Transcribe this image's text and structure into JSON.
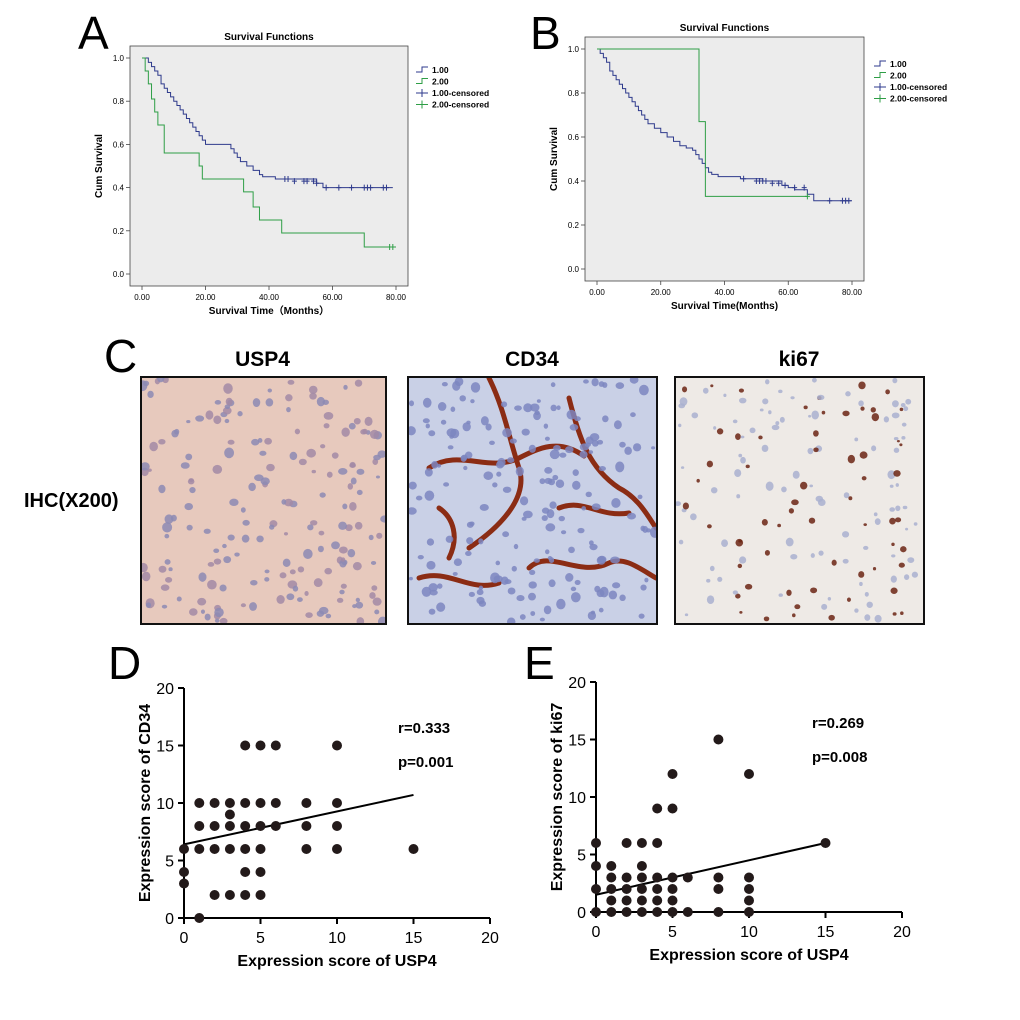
{
  "panels": {
    "A": "A",
    "B": "B",
    "C": "C",
    "D": "D",
    "E": "E"
  },
  "ihc": {
    "side_label": "IHC(X200)",
    "titles": [
      "USP4",
      "CD34",
      "ki67"
    ],
    "tint": [
      "#e7c9bd",
      "#c9d0e6",
      "#eeeae6"
    ]
  },
  "chart_data": [
    {
      "id": "A",
      "type": "line",
      "title": "Survival Functions",
      "xlabel": "Survival Time（Months）",
      "ylabel": "Cum Survival",
      "xlim": [
        0,
        80
      ],
      "ylim": [
        0,
        1
      ],
      "xticks": [
        "0.00",
        "20.00",
        "40.00",
        "60.00",
        "80.00"
      ],
      "yticks": [
        "0.0",
        "0.2",
        "0.4",
        "0.6",
        "0.8",
        "1.0"
      ],
      "legend": [
        "1.00",
        "2.00",
        "1.00-censored",
        "2.00-censored"
      ],
      "series": [
        {
          "name": "1.00",
          "color": "#2e3a8c",
          "steps": [
            [
              0,
              1.0
            ],
            [
              2,
              0.98
            ],
            [
              3,
              0.96
            ],
            [
              4,
              0.94
            ],
            [
              5,
              0.92
            ],
            [
              6,
              0.88
            ],
            [
              7,
              0.86
            ],
            [
              8,
              0.84
            ],
            [
              9,
              0.82
            ],
            [
              10,
              0.8
            ],
            [
              11,
              0.78
            ],
            [
              12,
              0.76
            ],
            [
              13,
              0.74
            ],
            [
              14,
              0.72
            ],
            [
              15,
              0.7
            ],
            [
              16,
              0.68
            ],
            [
              17,
              0.66
            ],
            [
              18,
              0.64
            ],
            [
              19,
              0.62
            ],
            [
              20,
              0.6
            ],
            [
              28,
              0.58
            ],
            [
              29,
              0.56
            ],
            [
              30,
              0.54
            ],
            [
              31,
              0.52
            ],
            [
              33,
              0.5
            ],
            [
              35,
              0.48
            ],
            [
              37,
              0.46
            ],
            [
              38,
              0.45
            ],
            [
              42,
              0.44
            ],
            [
              55,
              0.42
            ],
            [
              57,
              0.4
            ],
            [
              79,
              0.4
            ]
          ],
          "censored": [
            [
              45,
              0.44
            ],
            [
              46,
              0.44
            ],
            [
              48,
              0.43
            ],
            [
              51,
              0.43
            ],
            [
              52,
              0.43
            ],
            [
              54,
              0.43
            ],
            [
              55,
              0.42
            ],
            [
              58,
              0.4
            ],
            [
              62,
              0.4
            ],
            [
              66,
              0.4
            ],
            [
              70,
              0.4
            ],
            [
              71,
              0.4
            ],
            [
              72,
              0.4
            ],
            [
              76,
              0.4
            ],
            [
              77,
              0.4
            ]
          ]
        },
        {
          "name": "2.00",
          "color": "#2e9e46",
          "steps": [
            [
              0,
              1.0
            ],
            [
              1,
              0.94
            ],
            [
              2,
              0.88
            ],
            [
              3,
              0.81
            ],
            [
              4,
              0.75
            ],
            [
              5,
              0.69
            ],
            [
              7,
              0.56
            ],
            [
              18,
              0.5
            ],
            [
              19,
              0.44
            ],
            [
              32,
              0.38
            ],
            [
              35,
              0.31
            ],
            [
              37,
              0.25
            ],
            [
              44,
              0.19
            ],
            [
              70,
              0.125
            ],
            [
              80,
              0.125
            ]
          ],
          "censored": [
            [
              78,
              0.125
            ],
            [
              79,
              0.125
            ]
          ]
        }
      ]
    },
    {
      "id": "B",
      "type": "line",
      "title": "Survival Functions",
      "xlabel": "Survival Time(Months)",
      "ylabel": "Cum Survival",
      "xlim": [
        0,
        80
      ],
      "ylim": [
        0,
        1
      ],
      "xticks": [
        "0.00",
        "20.00",
        "40.00",
        "60.00",
        "80.00"
      ],
      "yticks": [
        "0.0",
        "0.2",
        "0.4",
        "0.6",
        "0.8",
        "1.0"
      ],
      "legend": [
        "1.00",
        "2.00",
        "1.00-censored",
        "2.00-censored"
      ],
      "series": [
        {
          "name": "1.00",
          "color": "#2e3a8c",
          "steps": [
            [
              0,
              1.0
            ],
            [
              1,
              0.98
            ],
            [
              2,
              0.96
            ],
            [
              3,
              0.94
            ],
            [
              4,
              0.9
            ],
            [
              5,
              0.88
            ],
            [
              6,
              0.86
            ],
            [
              7,
              0.84
            ],
            [
              8,
              0.82
            ],
            [
              9,
              0.8
            ],
            [
              10,
              0.78
            ],
            [
              11,
              0.76
            ],
            [
              12,
              0.74
            ],
            [
              13,
              0.72
            ],
            [
              14,
              0.7
            ],
            [
              15,
              0.68
            ],
            [
              16,
              0.66
            ],
            [
              18,
              0.64
            ],
            [
              20,
              0.62
            ],
            [
              22,
              0.6
            ],
            [
              24,
              0.58
            ],
            [
              26,
              0.56
            ],
            [
              28,
              0.55
            ],
            [
              30,
              0.54
            ],
            [
              31,
              0.52
            ],
            [
              32,
              0.5
            ],
            [
              33,
              0.48
            ],
            [
              34,
              0.46
            ],
            [
              35,
              0.44
            ],
            [
              36,
              0.43
            ],
            [
              38,
              0.42
            ],
            [
              45,
              0.41
            ],
            [
              52,
              0.4
            ],
            [
              58,
              0.38
            ],
            [
              60,
              0.37
            ],
            [
              62,
              0.36
            ],
            [
              66,
              0.34
            ],
            [
              68,
              0.31
            ],
            [
              80,
              0.31
            ]
          ],
          "censored": [
            [
              46,
              0.41
            ],
            [
              50,
              0.4
            ],
            [
              51,
              0.4
            ],
            [
              52,
              0.4
            ],
            [
              53,
              0.4
            ],
            [
              55,
              0.39
            ],
            [
              57,
              0.39
            ],
            [
              59,
              0.38
            ],
            [
              62,
              0.37
            ],
            [
              65,
              0.37
            ],
            [
              73,
              0.31
            ],
            [
              77,
              0.31
            ],
            [
              78,
              0.31
            ],
            [
              79,
              0.31
            ]
          ]
        },
        {
          "name": "2.00",
          "color": "#2e9e46",
          "steps": [
            [
              0,
              1.0
            ],
            [
              32,
              1.0
            ],
            [
              32,
              0.67
            ],
            [
              34,
              0.67
            ],
            [
              34,
              0.33
            ],
            [
              66,
              0.33
            ]
          ],
          "censored": [
            [
              66,
              0.33
            ]
          ]
        }
      ]
    },
    {
      "id": "D",
      "type": "scatter",
      "xlabel": "Expression score of USP4",
      "ylabel": "Expression score of CD34",
      "xlim": [
        0,
        20
      ],
      "ylim": [
        0,
        20
      ],
      "xticks": [
        "0",
        "5",
        "10",
        "15",
        "20"
      ],
      "yticks": [
        "0",
        "5",
        "10",
        "15",
        "20"
      ],
      "annotations": [
        "r=0.333",
        "p=0.001"
      ],
      "points": [
        [
          0,
          3
        ],
        [
          0,
          4
        ],
        [
          0,
          6
        ],
        [
          1,
          0
        ],
        [
          1,
          6
        ],
        [
          1,
          8
        ],
        [
          1,
          10
        ],
        [
          2,
          2
        ],
        [
          2,
          6
        ],
        [
          2,
          8
        ],
        [
          2,
          10
        ],
        [
          3,
          2
        ],
        [
          3,
          6
        ],
        [
          3,
          8
        ],
        [
          3,
          9
        ],
        [
          3,
          10
        ],
        [
          4,
          2
        ],
        [
          4,
          4
        ],
        [
          4,
          6
        ],
        [
          4,
          8
        ],
        [
          4,
          10
        ],
        [
          4,
          15
        ],
        [
          5,
          2
        ],
        [
          5,
          4
        ],
        [
          5,
          6
        ],
        [
          5,
          8
        ],
        [
          5,
          10
        ],
        [
          5,
          15
        ],
        [
          6,
          8
        ],
        [
          6,
          10
        ],
        [
          6,
          15
        ],
        [
          8,
          6
        ],
        [
          8,
          8
        ],
        [
          8,
          10
        ],
        [
          10,
          6
        ],
        [
          10,
          8
        ],
        [
          10,
          10
        ],
        [
          10,
          15
        ],
        [
          15,
          6
        ]
      ],
      "fit": [
        [
          0,
          6.4
        ],
        [
          15,
          10.7
        ]
      ]
    },
    {
      "id": "E",
      "type": "scatter",
      "xlabel": "Expression score of USP4",
      "ylabel": "Expression score of ki67",
      "xlim": [
        0,
        20
      ],
      "ylim": [
        0,
        20
      ],
      "xticks": [
        "0",
        "5",
        "10",
        "15",
        "20"
      ],
      "yticks": [
        "0",
        "5",
        "10",
        "15",
        "20"
      ],
      "annotations": [
        "r=0.269",
        "p=0.008"
      ],
      "points": [
        [
          0,
          0
        ],
        [
          0,
          2
        ],
        [
          0,
          4
        ],
        [
          0,
          6
        ],
        [
          1,
          0
        ],
        [
          1,
          1
        ],
        [
          1,
          2
        ],
        [
          1,
          3
        ],
        [
          1,
          4
        ],
        [
          2,
          0
        ],
        [
          2,
          1
        ],
        [
          2,
          2
        ],
        [
          2,
          3
        ],
        [
          2,
          6
        ],
        [
          3,
          0
        ],
        [
          3,
          1
        ],
        [
          3,
          2
        ],
        [
          3,
          3
        ],
        [
          3,
          4
        ],
        [
          3,
          6
        ],
        [
          4,
          0
        ],
        [
          4,
          1
        ],
        [
          4,
          2
        ],
        [
          4,
          3
        ],
        [
          4,
          6
        ],
        [
          4,
          9
        ],
        [
          5,
          0
        ],
        [
          5,
          1
        ],
        [
          5,
          2
        ],
        [
          5,
          3
        ],
        [
          5,
          9
        ],
        [
          5,
          12
        ],
        [
          6,
          0
        ],
        [
          6,
          3
        ],
        [
          8,
          0
        ],
        [
          8,
          2
        ],
        [
          8,
          3
        ],
        [
          8,
          15
        ],
        [
          10,
          0
        ],
        [
          10,
          1
        ],
        [
          10,
          2
        ],
        [
          10,
          3
        ],
        [
          10,
          12
        ],
        [
          15,
          6
        ]
      ],
      "fit": [
        [
          0,
          1.5
        ],
        [
          15,
          6.0
        ]
      ]
    }
  ]
}
